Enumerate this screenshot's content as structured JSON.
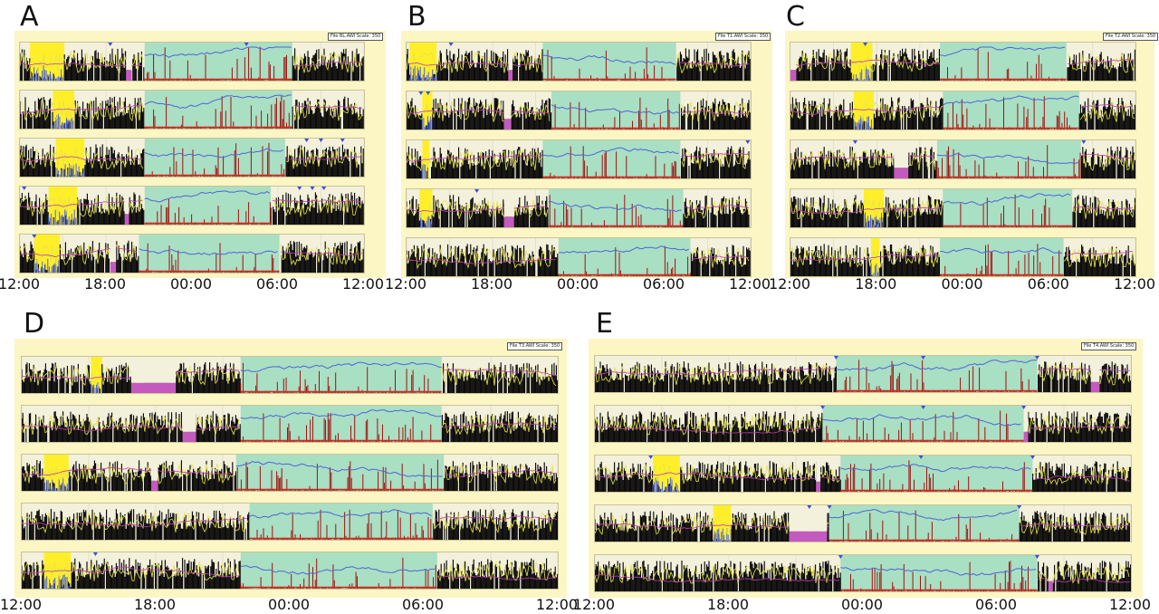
{
  "colors": {
    "frame": "#fbf6c4",
    "light": "#a9dfc3",
    "activity": "#000000",
    "luminance": "#e6e34a",
    "temperature": "#4f64d8",
    "wrist_temp": "#c03cb0",
    "event_marker": "#3b4fd8",
    "light_bar": "#ffef2a",
    "off_wrist": "#c45ac0",
    "red_activity": "#a1120f"
  },
  "chart_data": [
    {
      "type": "actogram",
      "panel": "A",
      "file_label": "File BL.AWI Scale: 350",
      "x_ticks": [
        "12:00",
        "18:00",
        "00:00",
        "06:00",
        "12:00"
      ],
      "x_range_hours": [
        0,
        24
      ],
      "days": [
        {
          "rest": [
            8.7,
            19.0
          ],
          "yellow": [
            0.7,
            3.1
          ],
          "offwrist": [
            [
              7.4,
              7.8
            ]
          ],
          "markers": [
            6.3,
            15.8
          ]
        },
        {
          "rest": [
            8.7,
            19.0
          ],
          "yellow": [
            2.3,
            3.8
          ],
          "offwrist": [],
          "markers": []
        },
        {
          "rest": [
            8.7,
            18.5
          ],
          "yellow": [
            2.5,
            4.5
          ],
          "offwrist": [],
          "markers": [
            20.0,
            21.0,
            22.5
          ]
        },
        {
          "rest": [
            8.7,
            17.5
          ],
          "yellow": [
            2.0,
            4.0
          ],
          "offwrist": [
            [
              7.3,
              7.6
            ]
          ],
          "markers": [
            0.3,
            19.5,
            20.4,
            21.2
          ]
        },
        {
          "rest": [
            8.3,
            18.1
          ],
          "yellow": [
            1.0,
            2.8
          ],
          "offwrist": [
            [
              6.3,
              6.7
            ]
          ],
          "markers": [
            1.0
          ]
        }
      ]
    },
    {
      "type": "actogram",
      "panel": "B",
      "file_label": "File T1.AWI Scale: 350",
      "x_ticks": [
        "12:00",
        "18:00",
        "00:00",
        "06:00",
        "12:00"
      ],
      "x_range_hours": [
        0,
        24
      ],
      "days": [
        {
          "rest": [
            9.5,
            18.8
          ],
          "yellow": [
            0.2,
            2.1
          ],
          "offwrist": [
            [
              7.1,
              7.4
            ]
          ],
          "markers": [
            3.1
          ]
        },
        {
          "rest": [
            10.1,
            19.1
          ],
          "yellow": [
            1.1,
            1.8
          ],
          "offwrist": [
            [
              6.8,
              7.3
            ]
          ],
          "markers": [
            1.0,
            1.5
          ]
        },
        {
          "rest": [
            9.5,
            19.1
          ],
          "yellow": [
            1.1,
            1.6
          ],
          "offwrist": [],
          "markers": [
            23.8
          ]
        },
        {
          "rest": [
            9.9,
            19.3
          ],
          "yellow": [
            0.9,
            1.8
          ],
          "offwrist": [
            [
              6.8,
              7.5
            ]
          ],
          "markers": [
            4.9
          ]
        },
        {
          "rest": [
            10.6,
            19.8
          ],
          "yellow": [],
          "offwrist": [],
          "markers": []
        }
      ]
    },
    {
      "type": "actogram",
      "panel": "C",
      "file_label": "File T2.AWI Scale: 350",
      "x_ticks": [
        "12:00",
        "18:00",
        "00:00",
        "06:00",
        "12:00"
      ],
      "x_range_hours": [
        0,
        24
      ],
      "days": [
        {
          "rest": [
            10.4,
            19.2
          ],
          "yellow": [
            4.2,
            5.7
          ],
          "offwrist": [
            [
              0.0,
              0.4
            ]
          ],
          "markers": [
            5.2
          ]
        },
        {
          "rest": [
            10.6,
            20.1
          ],
          "yellow": [
            4.4,
            5.8
          ],
          "offwrist": [],
          "markers": []
        },
        {
          "rest": [
            10.2,
            20.2
          ],
          "yellow": [],
          "offwrist": [
            [
              7.2,
              8.2
            ]
          ],
          "markers": [
            4.5,
            20.4
          ]
        },
        {
          "rest": [
            10.6,
            19.6
          ],
          "yellow": [
            5.1,
            6.5
          ],
          "offwrist": [],
          "markers": []
        },
        {
          "rest": [
            10.4,
            19.0
          ],
          "yellow": [
            5.6,
            6.2
          ],
          "offwrist": [],
          "markers": []
        }
      ]
    },
    {
      "type": "actogram",
      "panel": "D",
      "file_label": "File T3.AWI Scale: 350",
      "x_ticks": [
        "12:00",
        "18:00",
        "00:00",
        "06:00",
        "12:00"
      ],
      "x_range_hours": [
        0,
        24
      ],
      "days": [
        {
          "rest": [
            9.8,
            18.8
          ],
          "yellow": [
            3.1,
            3.6
          ],
          "offwrist": [
            [
              4.9,
              6.9
            ]
          ],
          "markers": []
        },
        {
          "rest": [
            9.8,
            18.8
          ],
          "yellow": [],
          "offwrist": [
            [
              7.2,
              7.8
            ]
          ],
          "markers": []
        },
        {
          "rest": [
            9.6,
            18.9
          ],
          "yellow": [
            1.0,
            2.1
          ],
          "offwrist": [
            [
              5.8,
              6.1
            ]
          ],
          "markers": []
        },
        {
          "rest": [
            10.2,
            18.4
          ],
          "yellow": [],
          "offwrist": [],
          "markers": []
        },
        {
          "rest": [
            9.8,
            18.6
          ],
          "yellow": [
            1.0,
            2.2
          ],
          "offwrist": [],
          "markers": [
            3.3
          ]
        }
      ]
    },
    {
      "type": "actogram",
      "panel": "E",
      "file_label": "File T4.AWI Scale: 350",
      "x_ticks": [
        "12:00",
        "18:00",
        "00:00",
        "06:00",
        "12:00"
      ],
      "x_range_hours": [
        0,
        24
      ],
      "days": [
        {
          "rest": [
            10.8,
            19.8
          ],
          "yellow": [],
          "offwrist": [
            [
              22.2,
              22.6
            ]
          ],
          "markers": [
            10.8,
            14.7,
            19.8
          ]
        },
        {
          "rest": [
            10.2,
            19.2
          ],
          "yellow": [],
          "offwrist": [
            [
              19.2,
              19.4
            ]
          ],
          "markers": [
            10.2,
            14.7,
            19.2
          ]
        },
        {
          "rest": [
            11.0,
            19.6
          ],
          "yellow": [
            2.6,
            3.8
          ],
          "offwrist": [
            [
              9.9,
              10.1
            ]
          ],
          "markers": [
            2.5,
            14.6,
            19.6
          ]
        },
        {
          "rest": [
            10.5,
            19.0
          ],
          "yellow": [
            5.3,
            6.1
          ],
          "offwrist": [
            [
              8.7,
              10.4
            ]
          ],
          "markers": [
            9.6,
            10.5,
            19.0
          ]
        },
        {
          "rest": [
            11.0,
            19.8
          ],
          "yellow": [],
          "offwrist": [
            [
              20.3,
              20.5
            ]
          ],
          "markers": [
            11.0,
            19.8
          ]
        }
      ]
    }
  ]
}
